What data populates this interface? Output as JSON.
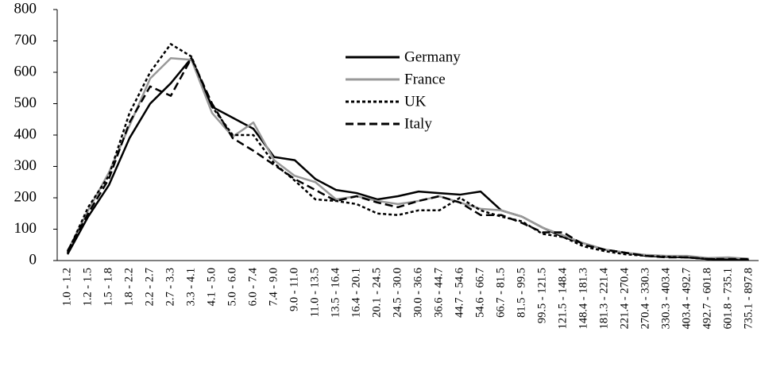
{
  "chart_data": {
    "type": "line",
    "categories": [
      "1.0 - 1.2",
      "1.2 - 1.5",
      "1.5 - 1.8",
      "1.8 - 2.2",
      "2.2 - 2.7",
      "2.7 - 3.3",
      "3.3 - 4.1",
      "4.1 - 5.0",
      "5.0 - 6.0",
      "6.0 - 7.4",
      "7.4 - 9.0",
      "9.0 - 11.0",
      "11.0 - 13.5",
      "13.5 - 16.4",
      "16.4 - 20.1",
      "20.1 - 24.5",
      "24.5 - 30.0",
      "30.0 - 36.6",
      "36.6 - 44.7",
      "44.7 - 54.6",
      "54.6 - 66.7",
      "66.7 - 81.5",
      "81.5 - 99.5",
      "99.5 - 121.5",
      "121.5 - 148.4",
      "148.4 - 181.3",
      "181.3 - 221.4",
      "221.4 - 270.4",
      "270.4 - 330.3",
      "330.3 - 403.4",
      "403.4 - 492.7",
      "492.7 - 601.8",
      "601.8 - 735.1",
      "735.1 - 897.8"
    ],
    "series": [
      {
        "name": "Germany",
        "color": "#000000",
        "style": "solid",
        "values": [
          20,
          140,
          240,
          390,
          500,
          565,
          645,
          490,
          455,
          420,
          330,
          320,
          260,
          225,
          215,
          195,
          205,
          220,
          215,
          210,
          220,
          160,
          140,
          105,
          75,
          55,
          35,
          25,
          15,
          12,
          10,
          5,
          3,
          2
        ]
      },
      {
        "name": "France",
        "color": "#999999",
        "style": "solid",
        "values": [
          30,
          160,
          280,
          430,
          580,
          645,
          640,
          470,
          395,
          440,
          320,
          270,
          250,
          195,
          205,
          190,
          180,
          190,
          205,
          185,
          165,
          160,
          140,
          105,
          80,
          55,
          35,
          25,
          18,
          15,
          15,
          8,
          10,
          5
        ]
      },
      {
        "name": "UK",
        "color": "#000000",
        "style": "dotted",
        "values": [
          25,
          170,
          270,
          470,
          600,
          690,
          650,
          490,
          400,
          400,
          310,
          255,
          195,
          190,
          180,
          150,
          145,
          160,
          160,
          200,
          160,
          140,
          125,
          85,
          75,
          45,
          30,
          20,
          15,
          12,
          10,
          5,
          3,
          2
        ]
      },
      {
        "name": "Italy",
        "color": "#000000",
        "style": "dashed",
        "values": [
          30,
          150,
          260,
          440,
          555,
          525,
          645,
          500,
          390,
          350,
          305,
          260,
          225,
          190,
          205,
          185,
          170,
          190,
          205,
          185,
          145,
          145,
          120,
          90,
          90,
          50,
          35,
          25,
          15,
          10,
          10,
          5,
          5,
          5
        ]
      }
    ],
    "ylim": [
      0,
      800
    ],
    "yticks": [
      0,
      100,
      200,
      300,
      400,
      500,
      600,
      700,
      800
    ],
    "grid": false,
    "legend": "upper center"
  }
}
